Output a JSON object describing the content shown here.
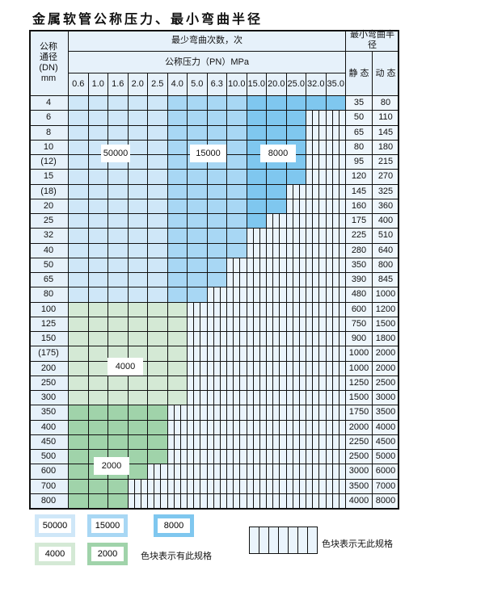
{
  "title": "金属软管公称压力、最小弯曲半径",
  "header": {
    "dn_label": "公称\n通径\n(DN)\nmm",
    "bend_count_label": "最少弯曲次数，次",
    "pressure_label": "公称压力（PN）MPa",
    "radius_label": "最小弯曲半径",
    "static_label": "静 态",
    "dynamic_label": "动 态",
    "pressures": [
      "0.6",
      "1.0",
      "1.6",
      "2.0",
      "2.5",
      "4.0",
      "5.0",
      "6.3",
      "10.0",
      "15.0",
      "20.0",
      "25.0",
      "32.0",
      "35.0"
    ]
  },
  "rows": [
    {
      "dn": "4",
      "static": "35",
      "dynamic": "80",
      "available_columns": 14
    },
    {
      "dn": "6",
      "static": "50",
      "dynamic": "110",
      "available_columns": 12
    },
    {
      "dn": "8",
      "static": "65",
      "dynamic": "145",
      "available_columns": 12
    },
    {
      "dn": "10",
      "static": "80",
      "dynamic": "180",
      "available_columns": 12
    },
    {
      "dn": "(12)",
      "static": "95",
      "dynamic": "215",
      "available_columns": 12
    },
    {
      "dn": "15",
      "static": "120",
      "dynamic": "270",
      "available_columns": 12
    },
    {
      "dn": "(18)",
      "static": "145",
      "dynamic": "325",
      "available_columns": 11
    },
    {
      "dn": "20",
      "static": "160",
      "dynamic": "360",
      "available_columns": 11
    },
    {
      "dn": "25",
      "static": "175",
      "dynamic": "400",
      "available_columns": 10
    },
    {
      "dn": "32",
      "static": "225",
      "dynamic": "510",
      "available_columns": 9
    },
    {
      "dn": "40",
      "static": "280",
      "dynamic": "640",
      "available_columns": 9
    },
    {
      "dn": "50",
      "static": "350",
      "dynamic": "800",
      "available_columns": 8
    },
    {
      "dn": "65",
      "static": "390",
      "dynamic": "845",
      "available_columns": 8
    },
    {
      "dn": "80",
      "static": "480",
      "dynamic": "1000",
      "available_columns": 7
    },
    {
      "dn": "100",
      "static": "600",
      "dynamic": "1200",
      "available_columns": 6
    },
    {
      "dn": "125",
      "static": "750",
      "dynamic": "1500",
      "available_columns": 6
    },
    {
      "dn": "150",
      "static": "900",
      "dynamic": "1800",
      "available_columns": 6
    },
    {
      "dn": "(175)",
      "static": "1000",
      "dynamic": "2000",
      "available_columns": 6
    },
    {
      "dn": "200",
      "static": "1000",
      "dynamic": "2000",
      "available_columns": 6
    },
    {
      "dn": "250",
      "static": "1250",
      "dynamic": "2500",
      "available_columns": 6
    },
    {
      "dn": "300",
      "static": "1500",
      "dynamic": "3000",
      "available_columns": 6
    },
    {
      "dn": "350",
      "static": "1750",
      "dynamic": "3500",
      "available_columns": 5
    },
    {
      "dn": "400",
      "static": "2000",
      "dynamic": "4000",
      "available_columns": 5
    },
    {
      "dn": "450",
      "static": "2250",
      "dynamic": "4500",
      "available_columns": 5
    },
    {
      "dn": "500",
      "static": "2500",
      "dynamic": "5000",
      "available_columns": 5
    },
    {
      "dn": "600",
      "static": "3000",
      "dynamic": "6000",
      "available_columns": 4
    },
    {
      "dn": "700",
      "static": "3500",
      "dynamic": "7000",
      "available_columns": 3
    },
    {
      "dn": "800",
      "static": "4000",
      "dynamic": "8000",
      "available_columns": 3
    }
  ],
  "zones": {
    "z50000": {
      "label": "50000",
      "color": "#cfe7f8"
    },
    "z15000": {
      "label": "15000",
      "color": "#a8d7f4"
    },
    "z8000": {
      "label": "8000",
      "color": "#7fc7ef"
    },
    "z4000": {
      "label": "4000",
      "color": "#d4e9d5"
    },
    "z2000": {
      "label": "2000",
      "color": "#a0d3aa"
    }
  },
  "legend": {
    "available_note": "色块表示有此规格",
    "unavailable_note": "色块表示无此规格"
  },
  "colors": {
    "cell_empty": "#eaf4fc",
    "header_bg": "#e6f1fa"
  }
}
